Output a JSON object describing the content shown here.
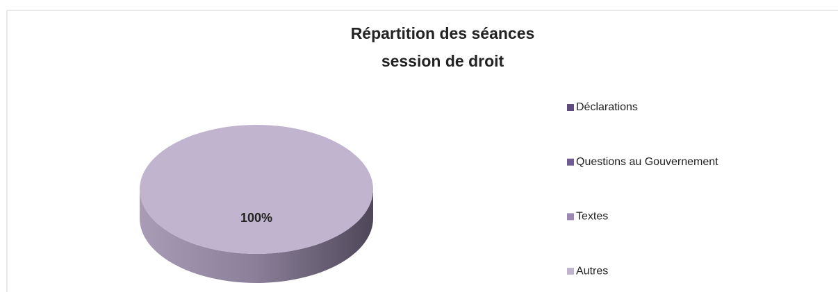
{
  "chart_data": {
    "type": "pie",
    "title": [
      "Répartition des séances",
      "session de droit"
    ],
    "categories": [
      "Déclarations",
      "Questions au Gouvernement",
      "Textes",
      "Autres"
    ],
    "values": [
      0,
      0,
      0,
      100
    ],
    "value_labels": [
      null,
      null,
      null,
      "100%"
    ],
    "colors": [
      "#5f4b7e",
      "#6f5b93",
      "#9c87b5",
      "#c0b4cf"
    ],
    "legend": "right"
  }
}
